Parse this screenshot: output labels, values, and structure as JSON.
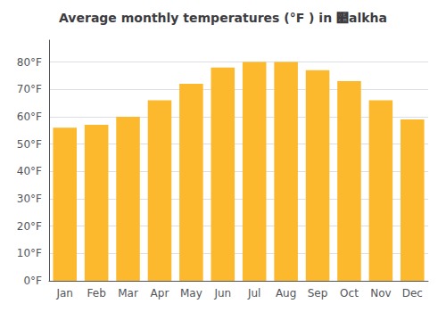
{
  "chart_data": {
    "type": "bar",
    "title": "Average monthly temperatures (°F ) in ๪alkha",
    "categories": [
      "Jan",
      "Feb",
      "Mar",
      "Apr",
      "May",
      "Jun",
      "Jul",
      "Aug",
      "Sep",
      "Oct",
      "Nov",
      "Dec"
    ],
    "values": [
      56,
      57,
      60,
      66,
      72,
      78,
      80,
      80,
      77,
      73,
      66,
      59
    ],
    "color": "#FDB92E",
    "ylim": [
      0,
      88
    ],
    "yticks": [
      {
        "value": 0,
        "label": "0°F"
      },
      {
        "value": 10,
        "label": "10°F"
      },
      {
        "value": 20,
        "label": "20°F"
      },
      {
        "value": 30,
        "label": "30°F"
      },
      {
        "value": 40,
        "label": "40°F"
      },
      {
        "value": 50,
        "label": "50°F"
      },
      {
        "value": 60,
        "label": "60°F"
      },
      {
        "value": 70,
        "label": "70°F"
      },
      {
        "value": 80,
        "label": "80°F"
      }
    ],
    "grid": true
  }
}
